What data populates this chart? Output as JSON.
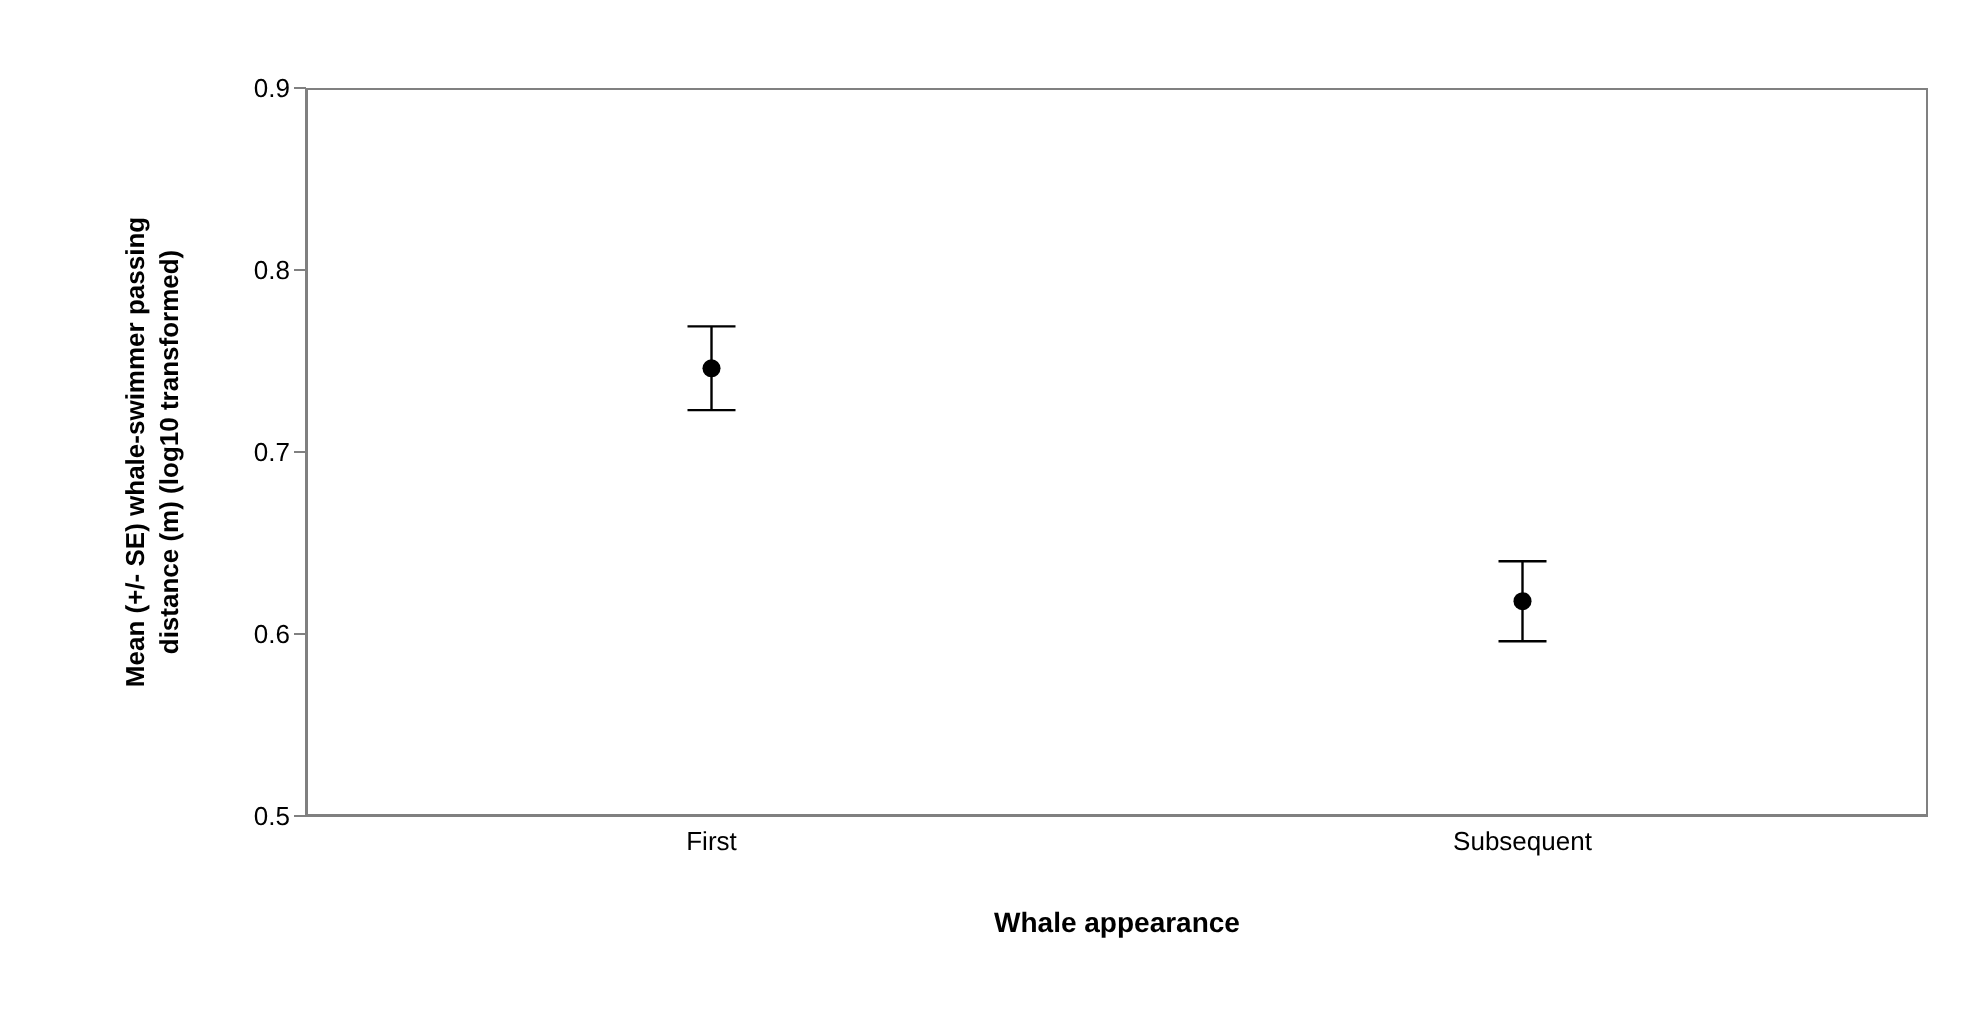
{
  "chart_data": {
    "type": "scatter",
    "categories": [
      "First",
      "Subsequent"
    ],
    "values": [
      0.746,
      0.618
    ],
    "errors": [
      0.023,
      0.022
    ],
    "color": "#000000",
    "marker": "circle",
    "xlabel": "Whale appearance",
    "ylabel": "Mean (+/- SE) whale-swimmer passing distance (m) (log10 transformed)",
    "ylim": [
      0.5,
      0.9
    ],
    "yticks": [
      0.5,
      0.6,
      0.7,
      0.8,
      0.9
    ],
    "grid": false
  }
}
